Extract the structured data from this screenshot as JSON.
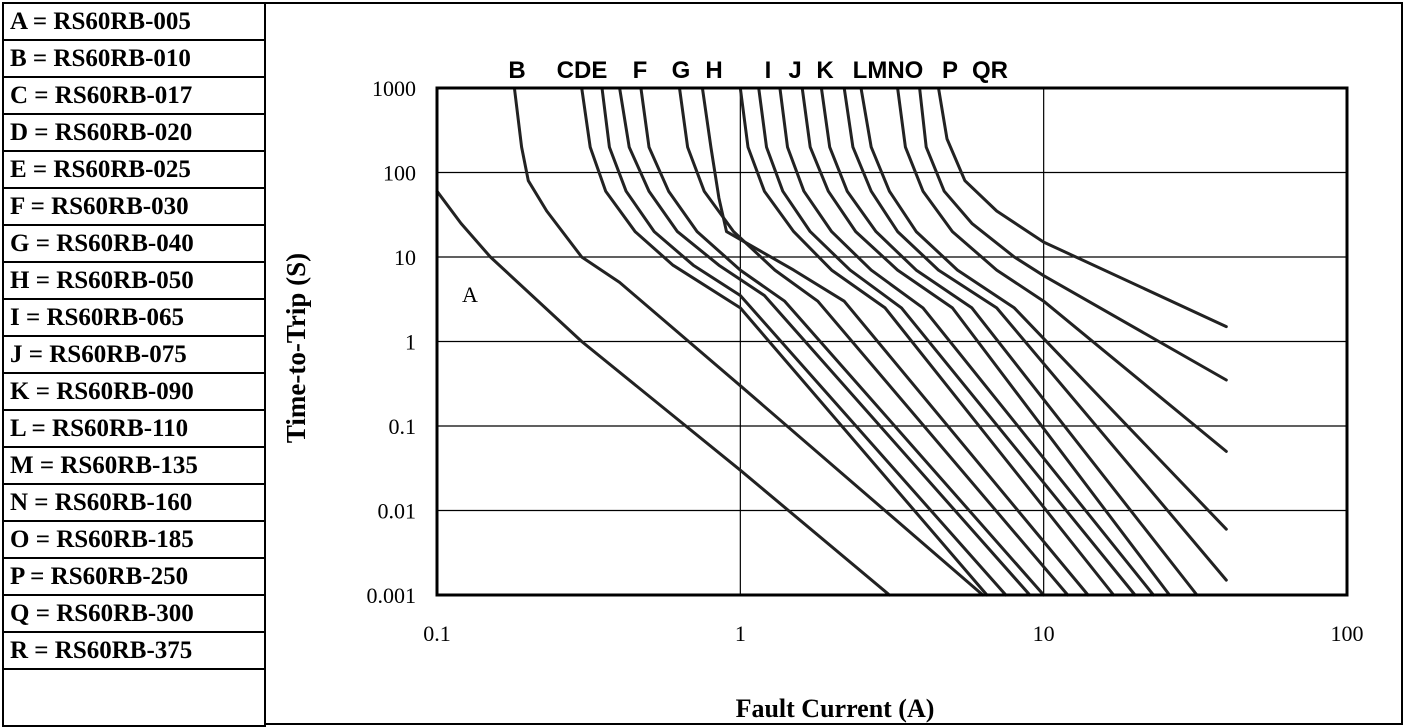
{
  "legend": {
    "items": [
      {
        "key": "A",
        "label": "A = RS60RB-005"
      },
      {
        "key": "B",
        "label": "B = RS60RB-010"
      },
      {
        "key": "C",
        "label": "C = RS60RB-017"
      },
      {
        "key": "D",
        "label": "D = RS60RB-020"
      },
      {
        "key": "E",
        "label": "E = RS60RB-025"
      },
      {
        "key": "F",
        "label": "F = RS60RB-030"
      },
      {
        "key": "G",
        "label": "G = RS60RB-040"
      },
      {
        "key": "H",
        "label": "H = RS60RB-050"
      },
      {
        "key": "I",
        "label": "I  = RS60RB-065"
      },
      {
        "key": "J",
        "label": "J  = RS60RB-075"
      },
      {
        "key": "K",
        "label": "K = RS60RB-090"
      },
      {
        "key": "L",
        "label": "L = RS60RB-110"
      },
      {
        "key": "M",
        "label": "M = RS60RB-135"
      },
      {
        "key": "N",
        "label": "N = RS60RB-160"
      },
      {
        "key": "O",
        "label": "O = RS60RB-185"
      },
      {
        "key": "P",
        "label": "P  = RS60RB-250"
      },
      {
        "key": "Q",
        "label": "Q = RS60RB-300"
      },
      {
        "key": "R",
        "label": "R = RS60RB-375"
      }
    ]
  },
  "chart_data": {
    "type": "line",
    "title": "",
    "xlabel": "Fault Current (A)",
    "ylabel": "Time-to-Trip (S)",
    "x_scale": "log",
    "y_scale": "log",
    "xlim": [
      0.1,
      100
    ],
    "ylim": [
      0.001,
      1000
    ],
    "x_ticks": [
      "0.1",
      "1",
      "10",
      "100"
    ],
    "y_ticks": [
      "0.001",
      "0.01",
      "0.1",
      "1",
      "10",
      "100",
      "1000"
    ],
    "grid": true,
    "top_labels": [
      "B",
      "CDE",
      "F",
      "G",
      "H",
      "I",
      "J",
      "K",
      "LMNO",
      "P",
      "QR"
    ],
    "annotation": "A",
    "series": [
      {
        "name": "A",
        "points": [
          [
            0.1,
            60
          ],
          [
            0.12,
            25
          ],
          [
            0.15,
            10
          ],
          [
            0.3,
            1.0
          ],
          [
            1.0,
            0.03
          ],
          [
            3.1,
            0.001
          ]
        ]
      },
      {
        "name": "B",
        "points": [
          [
            0.18,
            1000
          ],
          [
            0.19,
            200
          ],
          [
            0.2,
            80
          ],
          [
            0.23,
            35
          ],
          [
            0.3,
            10
          ],
          [
            0.4,
            5
          ],
          [
            1.0,
            0.3
          ],
          [
            6.3,
            0.001
          ]
        ]
      },
      {
        "name": "C",
        "points": [
          [
            0.3,
            1000
          ],
          [
            0.32,
            200
          ],
          [
            0.36,
            60
          ],
          [
            0.45,
            20
          ],
          [
            0.6,
            8
          ],
          [
            1.0,
            2.5
          ],
          [
            6.5,
            0.001
          ]
        ]
      },
      {
        "name": "D",
        "points": [
          [
            0.35,
            1000
          ],
          [
            0.37,
            200
          ],
          [
            0.42,
            60
          ],
          [
            0.52,
            20
          ],
          [
            0.7,
            8
          ],
          [
            1.0,
            3.5
          ],
          [
            7.5,
            0.001
          ]
        ]
      },
      {
        "name": "E",
        "points": [
          [
            0.4,
            1000
          ],
          [
            0.43,
            200
          ],
          [
            0.5,
            60
          ],
          [
            0.62,
            20
          ],
          [
            0.85,
            8
          ],
          [
            1.2,
            3.5
          ],
          [
            9.0,
            0.001
          ]
        ]
      },
      {
        "name": "F",
        "points": [
          [
            0.47,
            1000
          ],
          [
            0.5,
            200
          ],
          [
            0.58,
            60
          ],
          [
            0.72,
            20
          ],
          [
            1.0,
            7
          ],
          [
            1.4,
            3
          ],
          [
            10.0,
            0.001
          ]
        ]
      },
      {
        "name": "G",
        "points": [
          [
            0.63,
            1000
          ],
          [
            0.67,
            200
          ],
          [
            0.76,
            60
          ],
          [
            0.95,
            20
          ],
          [
            1.3,
            7
          ],
          [
            1.8,
            3
          ],
          [
            12.0,
            0.001
          ]
        ]
      },
      {
        "name": "H",
        "points": [
          [
            0.75,
            1000
          ],
          [
            0.8,
            200
          ],
          [
            0.85,
            50
          ],
          [
            0.9,
            20
          ],
          [
            1.5,
            7
          ],
          [
            2.2,
            3
          ],
          [
            14.0,
            0.001
          ]
        ]
      },
      {
        "name": "I",
        "points": [
          [
            1.0,
            1000
          ],
          [
            1.06,
            200
          ],
          [
            1.2,
            60
          ],
          [
            1.5,
            20
          ],
          [
            2.0,
            7
          ],
          [
            3.0,
            2.5
          ],
          [
            17.0,
            0.001
          ]
        ]
      },
      {
        "name": "J",
        "points": [
          [
            1.15,
            1000
          ],
          [
            1.22,
            200
          ],
          [
            1.38,
            60
          ],
          [
            1.7,
            20
          ],
          [
            2.3,
            7
          ],
          [
            3.4,
            2.5
          ],
          [
            20.0,
            0.001
          ]
        ]
      },
      {
        "name": "K",
        "points": [
          [
            1.35,
            1000
          ],
          [
            1.43,
            200
          ],
          [
            1.62,
            60
          ],
          [
            2.0,
            20
          ],
          [
            2.7,
            7
          ],
          [
            4.0,
            2.5
          ],
          [
            23.0,
            0.001
          ]
        ]
      },
      {
        "name": "L",
        "points": [
          [
            1.6,
            1000
          ],
          [
            1.7,
            200
          ],
          [
            1.95,
            60
          ],
          [
            2.4,
            20
          ],
          [
            3.3,
            7
          ],
          [
            5.0,
            2.5
          ],
          [
            26.0,
            0.001
          ]
        ]
      },
      {
        "name": "M",
        "points": [
          [
            1.85,
            1000
          ],
          [
            1.97,
            200
          ],
          [
            2.25,
            60
          ],
          [
            2.8,
            20
          ],
          [
            3.8,
            7
          ],
          [
            5.8,
            2.5
          ],
          [
            32.0,
            0.001
          ]
        ]
      },
      {
        "name": "N",
        "points": [
          [
            2.2,
            1000
          ],
          [
            2.35,
            200
          ],
          [
            2.7,
            60
          ],
          [
            3.3,
            20
          ],
          [
            4.5,
            7
          ],
          [
            7.0,
            2.5
          ],
          [
            40.0,
            0.0015
          ]
        ]
      },
      {
        "name": "O",
        "points": [
          [
            2.5,
            1000
          ],
          [
            2.7,
            200
          ],
          [
            3.1,
            60
          ],
          [
            3.8,
            20
          ],
          [
            5.2,
            7
          ],
          [
            8.0,
            2.5
          ],
          [
            40.0,
            0.006
          ]
        ]
      },
      {
        "name": "P",
        "points": [
          [
            3.3,
            1000
          ],
          [
            3.5,
            200
          ],
          [
            4.0,
            60
          ],
          [
            5.0,
            20
          ],
          [
            7.0,
            7
          ],
          [
            10.0,
            3
          ],
          [
            40.0,
            0.05
          ]
        ]
      },
      {
        "name": "Q",
        "points": [
          [
            3.9,
            1000
          ],
          [
            4.1,
            200
          ],
          [
            4.7,
            60
          ],
          [
            5.8,
            25
          ],
          [
            8.0,
            10
          ],
          [
            10.0,
            6
          ],
          [
            40.0,
            0.35
          ]
        ]
      },
      {
        "name": "R",
        "points": [
          [
            4.5,
            1000
          ],
          [
            4.8,
            250
          ],
          [
            5.5,
            80
          ],
          [
            7.0,
            35
          ],
          [
            10.0,
            15
          ],
          [
            40.0,
            1.5
          ]
        ]
      }
    ]
  }
}
